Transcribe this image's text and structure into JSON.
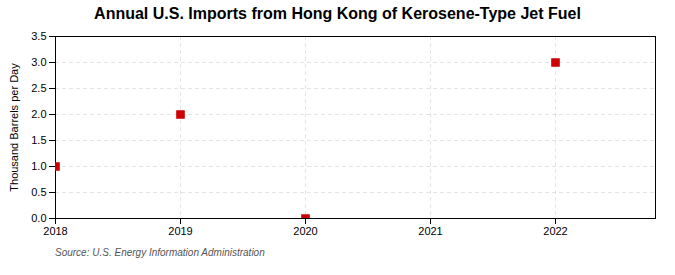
{
  "chart_data": {
    "type": "scatter",
    "title": "Annual U.S. Imports from Hong Kong of Kerosene-Type Jet Fuel",
    "ylabel": "Thousand Barrels per Day",
    "caption": "Source: U.S. Energy Information Administration",
    "x": [
      2018,
      2019,
      2020,
      2021,
      2022
    ],
    "values": [
      1.0,
      2.0,
      0.0,
      null,
      3.0
    ],
    "color": "#cc0000",
    "marker": "square",
    "xlim": [
      2018,
      2022.8
    ],
    "xticks": [
      2018,
      2019,
      2020,
      2021,
      2022
    ],
    "ylim": [
      0,
      3.5
    ],
    "yticks": [
      {
        "value": 0,
        "label": "0.0"
      },
      0.5,
      {
        "value": 1,
        "label": "1.0"
      },
      1.5,
      {
        "value": 2,
        "label": "2.0"
      },
      2.5,
      {
        "value": 3,
        "label": "3.0"
      },
      3.5
    ],
    "grid": true
  }
}
